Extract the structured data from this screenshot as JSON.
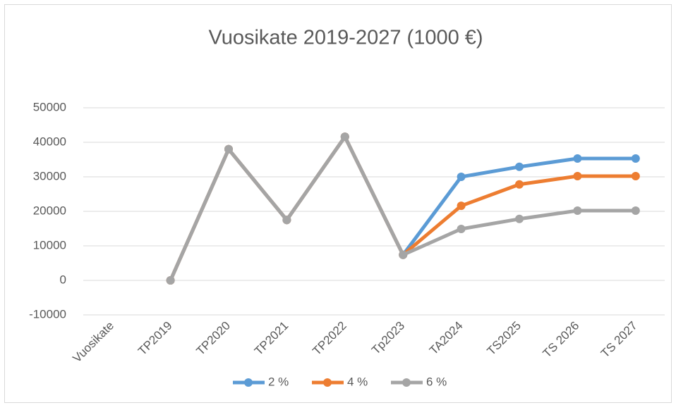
{
  "chart_data": {
    "type": "line",
    "title": "Vuosikate 2019-2027 (1000 €)",
    "categories": [
      "Vuosikate",
      "TP2019",
      "TP2020",
      "TP2021",
      "TP2022",
      "Tp2023",
      "TA2024",
      "TS2025",
      "TS 2026",
      "TS 2027"
    ],
    "series": [
      {
        "name": "2 %",
        "color": "#5b9bd5",
        "values": [
          null,
          0,
          38000,
          17500,
          41600,
          7400,
          30000,
          32900,
          35300,
          35300
        ]
      },
      {
        "name": "4 %",
        "color": "#ed7d31",
        "values": [
          null,
          0,
          38000,
          17500,
          41600,
          7400,
          21600,
          27800,
          30200,
          30200
        ]
      },
      {
        "name": "6 %",
        "color": "#a5a5a5",
        "values": [
          null,
          0,
          38000,
          17500,
          41600,
          7400,
          14900,
          17800,
          20200,
          20200
        ]
      }
    ],
    "ylim": [
      -10000,
      50000
    ],
    "yticks": [
      -10000,
      0,
      10000,
      20000,
      30000,
      40000,
      50000
    ],
    "grid": true,
    "legend": "bottom"
  }
}
